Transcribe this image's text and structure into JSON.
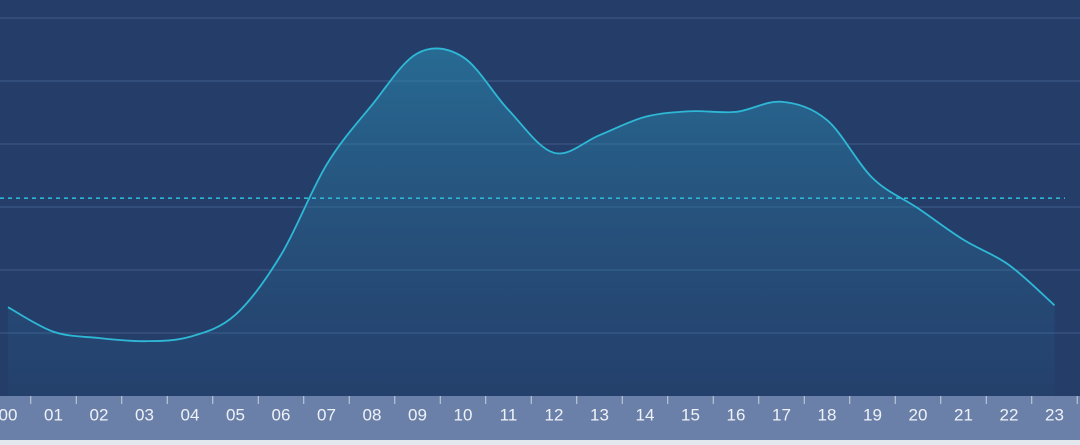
{
  "chart_data": {
    "type": "area",
    "categories": [
      "00",
      "01",
      "02",
      "03",
      "04",
      "05",
      "06",
      "07",
      "08",
      "09",
      "10",
      "11",
      "12",
      "13",
      "14",
      "15",
      "16",
      "17",
      "18",
      "19",
      "20",
      "21",
      "22",
      "23"
    ],
    "values": [
      1.41,
      1.02,
      0.92,
      0.87,
      0.94,
      1.29,
      2.24,
      3.67,
      4.62,
      5.44,
      5.38,
      4.54,
      3.86,
      4.14,
      4.43,
      4.52,
      4.51,
      4.67,
      4.38,
      3.46,
      2.98,
      2.48,
      2.08,
      1.44
    ],
    "color": "#2fb8d6",
    "reference_line": 3.14,
    "ylim": [
      0,
      6
    ],
    "yticks": [
      1,
      2,
      3,
      4,
      5,
      6
    ],
    "grid": true
  }
}
